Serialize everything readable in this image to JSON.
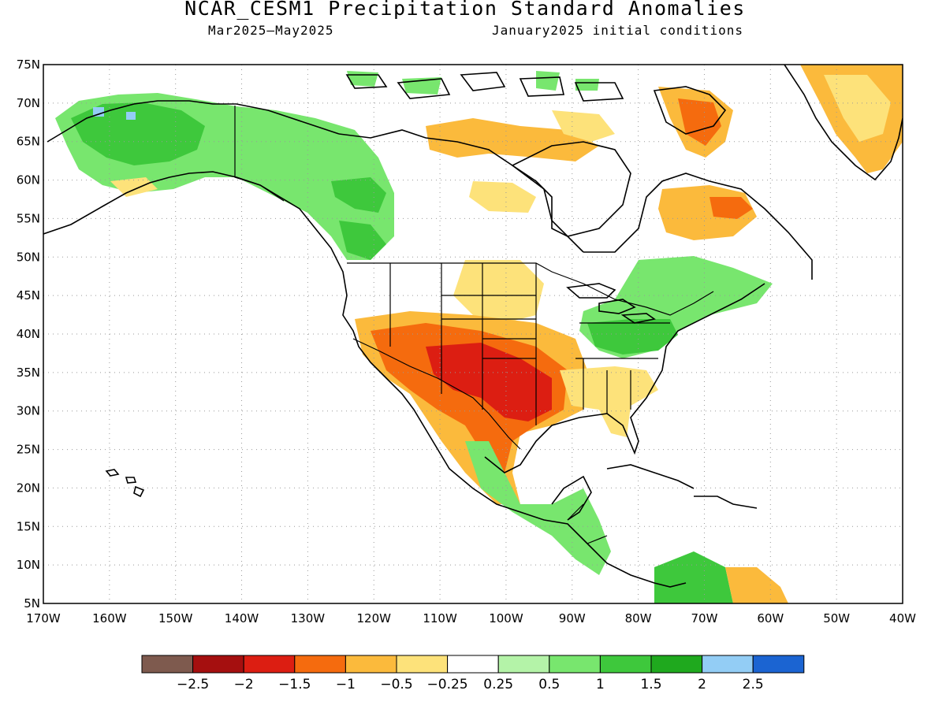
{
  "title": "NCAR_CESM1 Precipitation Standard Anomalies",
  "subtitle_left": "Mar2025—May2025",
  "subtitle_right": "January2025 initial conditions",
  "map": {
    "lon_range": [
      -170,
      -40
    ],
    "lat_range": [
      5,
      75
    ],
    "lat_ticks": [
      "75N",
      "70N",
      "65N",
      "60N",
      "55N",
      "50N",
      "45N",
      "40N",
      "35N",
      "30N",
      "25N",
      "20N",
      "15N",
      "10N",
      "5N"
    ],
    "lon_ticks": [
      "170W",
      "160W",
      "150W",
      "140W",
      "130W",
      "120W",
      "110W",
      "100W",
      "90W",
      "80W",
      "70W",
      "60W",
      "50W",
      "40W"
    ],
    "gridlines": "dotted"
  },
  "colorbar": {
    "colors": [
      "#7e5a4e",
      "#a50f0f",
      "#dc1e12",
      "#f56b0e",
      "#fbba3c",
      "#fde27a",
      "#ffffff",
      "#b4f3a8",
      "#78e66e",
      "#3ec83c",
      "#1fa91e",
      "#93cdf5",
      "#1b64d2"
    ],
    "labels": [
      "−2.5",
      "−2",
      "−1.5",
      "−1",
      "−0.5",
      "−0.25",
      "0.25",
      "0.5",
      "1",
      "1.5",
      "2",
      "2.5"
    ]
  }
}
